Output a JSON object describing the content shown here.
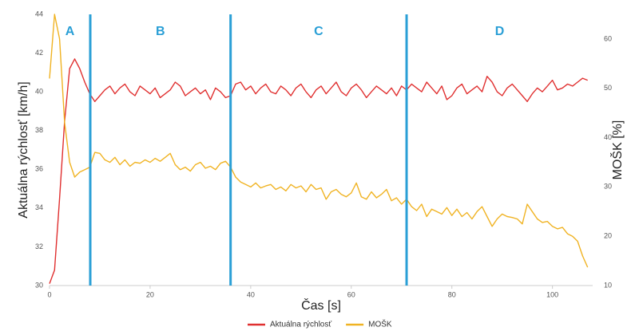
{
  "chart_data": {
    "type": "line",
    "xlabel": "Čas [s]",
    "ylabel": "Aktuálna rýchlosť [km/h]",
    "y2label": "MOŠK [%]",
    "xlim": [
      0,
      108
    ],
    "xticks": [
      0,
      20,
      40,
      60,
      80,
      100
    ],
    "ylim": [
      30,
      44
    ],
    "yticks": [
      30,
      32,
      34,
      36,
      38,
      40,
      42,
      44
    ],
    "y2lim": [
      10,
      65
    ],
    "y2ticks": [
      10,
      20,
      30,
      40,
      50,
      60
    ],
    "grid": false,
    "legend": "bottom",
    "phases": {
      "color": "#2a9fd6",
      "labels": [
        "A",
        "B",
        "C",
        "D"
      ],
      "boundaries": [
        8.1,
        36,
        71
      ]
    },
    "x": [
      0,
      1,
      2,
      3,
      4,
      5,
      6,
      7,
      8,
      9,
      10,
      11,
      12,
      13,
      14,
      15,
      16,
      17,
      18,
      19,
      20,
      21,
      22,
      23,
      24,
      25,
      26,
      27,
      28,
      29,
      30,
      31,
      32,
      33,
      34,
      35,
      36,
      37,
      38,
      39,
      40,
      41,
      42,
      43,
      44,
      45,
      46,
      47,
      48,
      49,
      50,
      51,
      52,
      53,
      54,
      55,
      56,
      57,
      58,
      59,
      60,
      61,
      62,
      63,
      64,
      65,
      66,
      67,
      68,
      69,
      70,
      71,
      72,
      73,
      74,
      75,
      76,
      77,
      78,
      79,
      80,
      81,
      82,
      83,
      84,
      85,
      86,
      87,
      88,
      89,
      90,
      91,
      92,
      93,
      94,
      95,
      96,
      97,
      98,
      99,
      100,
      101,
      102,
      103,
      104,
      105,
      106,
      107
    ],
    "series": [
      {
        "name": "Aktuálna rýchlosť",
        "color": "#e03030",
        "values": [
          30.1,
          30.8,
          34.5,
          38.5,
          41.2,
          41.7,
          41.2,
          40.5,
          39.9,
          39.5,
          39.8,
          40.1,
          40.3,
          39.9,
          40.2,
          40.4,
          40.0,
          39.8,
          40.3,
          40.1,
          39.9,
          40.2,
          39.7,
          39.9,
          40.1,
          40.5,
          40.3,
          39.8,
          40.0,
          40.2,
          39.9,
          40.1,
          39.6,
          40.2,
          40.0,
          39.7,
          39.8,
          40.4,
          40.5,
          40.1,
          40.3,
          39.9,
          40.2,
          40.4,
          40.0,
          39.9,
          40.3,
          40.1,
          39.8,
          40.2,
          40.4,
          40.0,
          39.7,
          40.1,
          40.3,
          39.9,
          40.2,
          40.5,
          40.0,
          39.8,
          40.2,
          40.4,
          40.1,
          39.7,
          40.0,
          40.3,
          40.1,
          39.9,
          40.2,
          39.8,
          40.3,
          40.1,
          40.4,
          40.2,
          40.0,
          40.5,
          40.2,
          39.9,
          40.3,
          39.6,
          39.8,
          40.2,
          40.4,
          39.9,
          40.1,
          40.3,
          40.0,
          40.8,
          40.5,
          40.0,
          39.8,
          40.2,
          40.4,
          40.1,
          39.8,
          39.5,
          39.9,
          40.2,
          40.0,
          40.3,
          40.6,
          40.1,
          40.2,
          40.4,
          40.3,
          40.5,
          40.7,
          40.6
        ]
      },
      {
        "name": "MOŠK",
        "color": "#f0b323",
        "axis": "y2",
        "values": [
          52,
          65,
          60,
          43,
          35,
          32,
          33,
          33.5,
          34,
          37,
          36.8,
          35.5,
          35,
          36,
          34.5,
          35.5,
          34.2,
          35,
          34.8,
          35.5,
          35,
          35.8,
          35.2,
          36,
          36.8,
          34.5,
          33.5,
          34,
          33.2,
          34.5,
          35,
          33.8,
          34.2,
          33.5,
          34.8,
          35.2,
          34,
          32,
          31,
          30.5,
          30,
          30.8,
          29.8,
          30.2,
          30.5,
          29.5,
          30,
          29.2,
          30.5,
          29.8,
          30.2,
          29,
          30.5,
          29.5,
          29.8,
          27.5,
          29,
          29.5,
          28.5,
          28,
          28.8,
          30.8,
          28,
          27.5,
          29,
          27.8,
          28.5,
          29.5,
          27.2,
          27.8,
          26.5,
          27.5,
          26,
          25.2,
          26.5,
          24,
          25.5,
          25,
          24.5,
          25.8,
          24.2,
          25.5,
          24,
          24.8,
          23.5,
          25,
          26,
          24,
          22,
          23.5,
          24.5,
          24,
          23.8,
          23.5,
          22.5,
          26.5,
          25,
          23.5,
          22.8,
          23,
          22,
          21.5,
          21.8,
          20.5,
          20,
          19,
          16,
          13.7
        ]
      }
    ]
  }
}
